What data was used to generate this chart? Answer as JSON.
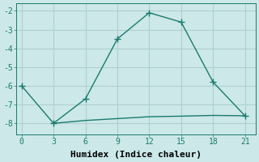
{
  "xlabel": "Humidex (Indice chaleur)",
  "bg_color": "#cce8e8",
  "line_color": "#1a7a6e",
  "grid_color": "#afd0d0",
  "x_main": [
    0,
    3,
    6,
    9,
    12,
    15,
    18,
    21
  ],
  "y_main": [
    -6.0,
    -8.0,
    -6.7,
    -3.5,
    -2.1,
    -2.6,
    -5.8,
    -7.6
  ],
  "x_flat": [
    3,
    6,
    9,
    12,
    15,
    18,
    21
  ],
  "y_flat": [
    -8.0,
    -7.85,
    -7.75,
    -7.65,
    -7.62,
    -7.58,
    -7.6
  ],
  "xlim": [
    -0.5,
    22
  ],
  "ylim": [
    -8.6,
    -1.6
  ],
  "xticks": [
    0,
    3,
    6,
    9,
    12,
    15,
    18,
    21
  ],
  "yticks": [
    -8,
    -7,
    -6,
    -5,
    -4,
    -3,
    -2
  ],
  "markersize": 3,
  "linewidth": 1.0,
  "tick_labelsize": 7,
  "xlabel_fontsize": 8
}
